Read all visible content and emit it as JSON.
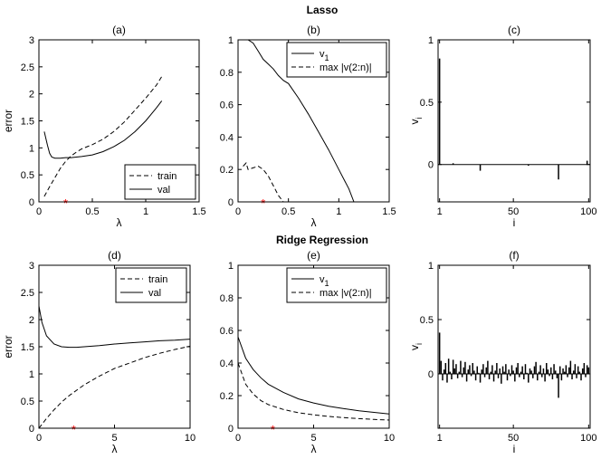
{
  "figure": {
    "row_titles": [
      "Lasso",
      "Ridge Regression"
    ]
  },
  "chart_data": [
    {
      "id": "a",
      "type": "line",
      "title": "(a)",
      "xlabel": "λ",
      "ylabel": "error",
      "xlim": [
        0,
        1.5
      ],
      "ylim": [
        0,
        3
      ],
      "xticks": [
        "0",
        "0.5",
        "1",
        "1.5"
      ],
      "yticks": [
        "0",
        "0.5",
        "1",
        "1.5",
        "2",
        "2.5",
        "3"
      ],
      "legend": {
        "position": "bottom-right"
      },
      "series": [
        {
          "name": "train",
          "style": "dashed",
          "x": [
            0.05,
            0.1,
            0.15,
            0.2,
            0.25,
            0.3,
            0.35,
            0.4,
            0.45,
            0.5,
            0.6,
            0.7,
            0.8,
            0.9,
            1.0,
            1.1,
            1.15
          ],
          "y": [
            0.1,
            0.28,
            0.45,
            0.62,
            0.75,
            0.85,
            0.92,
            0.98,
            1.02,
            1.06,
            1.16,
            1.3,
            1.48,
            1.7,
            1.92,
            2.16,
            2.32
          ]
        },
        {
          "name": "val",
          "style": "solid",
          "x": [
            0.05,
            0.08,
            0.1,
            0.12,
            0.15,
            0.2,
            0.25,
            0.3,
            0.35,
            0.4,
            0.5,
            0.6,
            0.7,
            0.8,
            0.9,
            1.0,
            1.1,
            1.15
          ],
          "y": [
            1.3,
            1.05,
            0.9,
            0.83,
            0.81,
            0.81,
            0.82,
            0.82,
            0.83,
            0.84,
            0.87,
            0.93,
            1.02,
            1.14,
            1.3,
            1.5,
            1.74,
            1.87
          ]
        }
      ],
      "marker": {
        "x": 0.25,
        "y": 0,
        "symbol": "*",
        "color": "#ff0000"
      }
    },
    {
      "id": "b",
      "type": "line",
      "title": "(b)",
      "xlabel": "λ",
      "ylabel": "",
      "xlim": [
        0,
        1.5
      ],
      "ylim": [
        0,
        1
      ],
      "xticks": [
        "0",
        "0.5",
        "1",
        "1.5"
      ],
      "yticks": [
        "0",
        "0.2",
        "0.4",
        "0.6",
        "0.8",
        "1"
      ],
      "legend": {
        "position": "top-right"
      },
      "series": [
        {
          "name": "v",
          "name_sub": "1",
          "style": "solid",
          "x": [
            0.05,
            0.1,
            0.15,
            0.2,
            0.25,
            0.3,
            0.35,
            0.4,
            0.45,
            0.5,
            0.6,
            0.7,
            0.8,
            0.9,
            1.0,
            1.1,
            1.15
          ],
          "y": [
            1.0,
            1.0,
            0.98,
            0.93,
            0.88,
            0.85,
            0.82,
            0.78,
            0.75,
            0.73,
            0.64,
            0.54,
            0.43,
            0.32,
            0.2,
            0.08,
            0.0
          ]
        },
        {
          "name": "max |v(2:n)|",
          "style": "dashed",
          "x": [
            0.05,
            0.08,
            0.1,
            0.15,
            0.2,
            0.25,
            0.3,
            0.35,
            0.4,
            0.45
          ],
          "y": [
            0.22,
            0.24,
            0.2,
            0.21,
            0.22,
            0.2,
            0.16,
            0.1,
            0.04,
            0.0
          ]
        }
      ],
      "marker": {
        "x": 0.25,
        "y": 0,
        "symbol": "*",
        "color": "#ff0000"
      }
    },
    {
      "id": "c",
      "type": "bar",
      "title": "(c)",
      "xlabel": "i",
      "ylabel": "v",
      "ylabel_sub": "i",
      "xlim": [
        0,
        101
      ],
      "ylim": [
        -0.3,
        1
      ],
      "xticks": [
        "1",
        "50",
        "100"
      ],
      "yticks": [
        "0",
        "0.5",
        "1"
      ],
      "indices": [
        1,
        10,
        28,
        60,
        80,
        99
      ],
      "values": [
        0.85,
        0.01,
        -0.05,
        -0.01,
        -0.12,
        0.03
      ]
    },
    {
      "id": "d",
      "type": "line",
      "title": "(d)",
      "xlabel": "λ",
      "ylabel": "error",
      "xlim": [
        0,
        10
      ],
      "ylim": [
        0,
        3
      ],
      "xticks": [
        "0",
        "5",
        "10"
      ],
      "yticks": [
        "0",
        "0.5",
        "1",
        "1.5",
        "2",
        "2.5",
        "3"
      ],
      "legend": {
        "position": "top-right"
      },
      "series": [
        {
          "name": "train",
          "style": "dashed",
          "x": [
            0,
            0.5,
            1,
            1.5,
            2,
            3,
            4,
            5,
            6,
            7,
            8,
            9,
            10
          ],
          "y": [
            0.0,
            0.18,
            0.34,
            0.48,
            0.6,
            0.8,
            0.96,
            1.1,
            1.2,
            1.3,
            1.38,
            1.45,
            1.51
          ]
        },
        {
          "name": "val",
          "style": "solid",
          "x": [
            0,
            0.2,
            0.5,
            1,
            1.5,
            2,
            2.5,
            3,
            4,
            5,
            6,
            7,
            8,
            9,
            10
          ],
          "y": [
            2.25,
            1.95,
            1.7,
            1.55,
            1.5,
            1.49,
            1.49,
            1.5,
            1.52,
            1.55,
            1.57,
            1.59,
            1.61,
            1.62,
            1.64
          ]
        }
      ],
      "marker": {
        "x": 2.3,
        "y": 0,
        "symbol": "*",
        "color": "#ff0000"
      }
    },
    {
      "id": "e",
      "type": "line",
      "title": "(e)",
      "xlabel": "λ",
      "ylabel": "",
      "xlim": [
        0,
        10
      ],
      "ylim": [
        0,
        1
      ],
      "xticks": [
        "0",
        "5",
        "10"
      ],
      "yticks": [
        "0",
        "0.2",
        "0.4",
        "0.6",
        "0.8",
        "1"
      ],
      "legend": {
        "position": "top-right"
      },
      "series": [
        {
          "name": "v",
          "name_sub": "1",
          "style": "solid",
          "x": [
            0,
            0.5,
            1,
            1.5,
            2,
            3,
            4,
            5,
            6,
            7,
            8,
            9,
            10
          ],
          "y": [
            0.56,
            0.43,
            0.36,
            0.31,
            0.27,
            0.22,
            0.18,
            0.155,
            0.135,
            0.12,
            0.107,
            0.097,
            0.088
          ]
        },
        {
          "name": "max |v(2:n)|",
          "style": "dashed",
          "x": [
            0,
            0.5,
            1,
            1.5,
            2,
            3,
            4,
            5,
            6,
            7,
            8,
            9,
            10
          ],
          "y": [
            0.4,
            0.27,
            0.21,
            0.17,
            0.145,
            0.115,
            0.095,
            0.082,
            0.072,
            0.065,
            0.059,
            0.054,
            0.05
          ]
        }
      ],
      "marker": {
        "x": 2.3,
        "y": 0,
        "symbol": "*",
        "color": "#ff0000"
      }
    },
    {
      "id": "f",
      "type": "bar",
      "title": "(f)",
      "xlabel": "i",
      "ylabel": "v",
      "ylabel_sub": "i",
      "xlim": [
        0,
        101
      ],
      "ylim": [
        -0.5,
        1
      ],
      "xticks": [
        "1",
        "50",
        "100"
      ],
      "yticks": [
        "0",
        "0.5",
        "1"
      ],
      "indices": [
        1,
        2,
        3,
        4,
        5,
        6,
        7,
        8,
        9,
        10,
        11,
        12,
        13,
        14,
        15,
        16,
        17,
        18,
        19,
        20,
        21,
        22,
        23,
        24,
        25,
        26,
        27,
        28,
        29,
        30,
        31,
        32,
        33,
        34,
        35,
        36,
        37,
        38,
        39,
        40,
        41,
        42,
        43,
        44,
        45,
        46,
        47,
        48,
        49,
        50,
        51,
        52,
        53,
        54,
        55,
        56,
        57,
        58,
        59,
        60,
        61,
        62,
        63,
        64,
        65,
        66,
        67,
        68,
        69,
        70,
        71,
        72,
        73,
        74,
        75,
        76,
        77,
        78,
        79,
        80,
        81,
        82,
        83,
        84,
        85,
        86,
        87,
        88,
        89,
        90,
        91,
        92,
        93,
        94,
        95,
        96,
        97,
        98,
        99,
        100
      ],
      "values": [
        0.38,
        0.12,
        -0.06,
        0.04,
        0.1,
        -0.08,
        0.14,
        0.02,
        -0.05,
        0.13,
        0.05,
        0.09,
        -0.04,
        0.02,
        0.12,
        -0.03,
        0.06,
        0.11,
        -0.07,
        0.04,
        0.08,
        -0.02,
        0.1,
        0.03,
        -0.06,
        0.07,
        0.01,
        -0.08,
        0.04,
        0.09,
        -0.03,
        0.06,
        0.12,
        -0.05,
        0.02,
        0.08,
        -0.07,
        0.03,
        0.1,
        -0.04,
        0.05,
        -0.09,
        0.07,
        0.02,
        0.09,
        -0.06,
        0.04,
        -0.02,
        0.08,
        0.03,
        -0.07,
        0.06,
        0.1,
        -0.03,
        0.02,
        0.07,
        -0.05,
        0.09,
        0.01,
        -0.08,
        0.05,
        0.03,
        -0.04,
        0.07,
        0.11,
        -0.06,
        0.02,
        0.08,
        -0.03,
        0.05,
        -0.07,
        0.1,
        0.04,
        -0.02,
        0.06,
        -0.05,
        0.09,
        0.03,
        -0.04,
        -0.22,
        0.07,
        -0.06,
        0.05,
        0.02,
        0.08,
        -0.03,
        0.06,
        0.12,
        -0.05,
        0.03,
        0.09,
        -0.04,
        0.07,
        0.02,
        -0.06,
        0.05,
        0.1,
        -0.03,
        0.08,
        0.06
      ]
    }
  ]
}
